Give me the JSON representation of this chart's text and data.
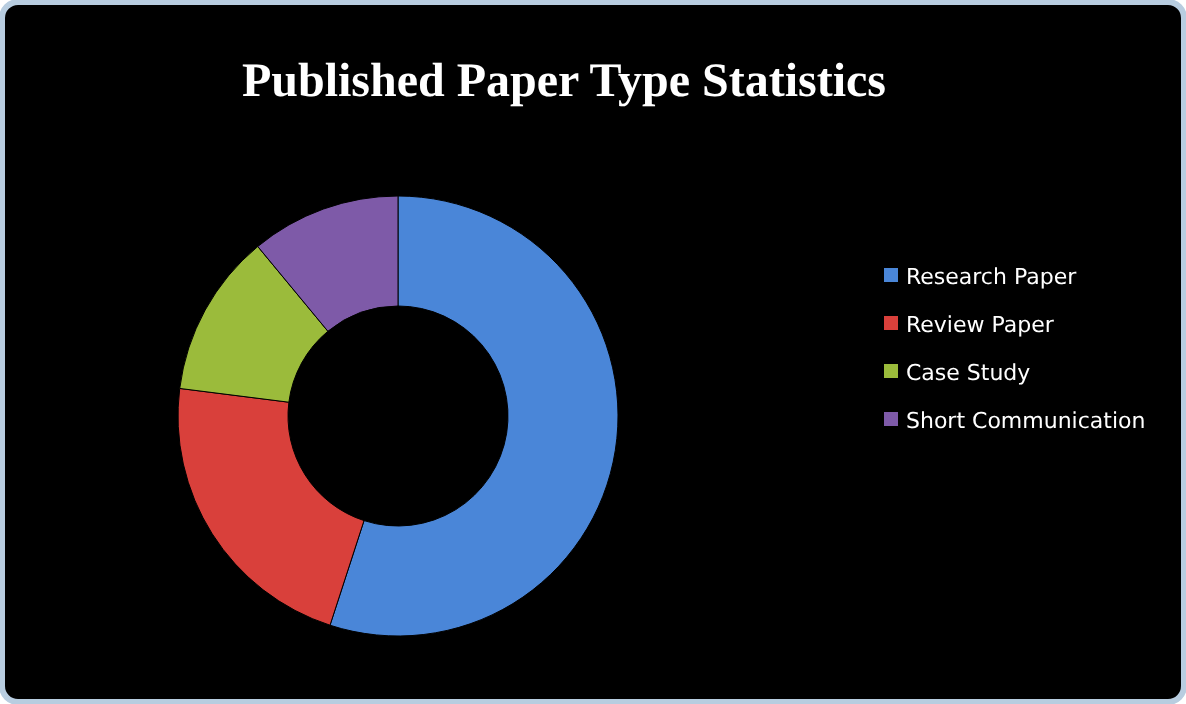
{
  "chart_data": {
    "type": "donut",
    "title": "Published Paper Type Statistics",
    "categories": [
      "Research Paper",
      "Review Paper",
      "Case Study",
      "Short Communication"
    ],
    "values": [
      55,
      22,
      12,
      11
    ],
    "colors": [
      "#4a86d8",
      "#d9403b",
      "#9bbb3b",
      "#7e5aa8"
    ],
    "legend": "right"
  }
}
